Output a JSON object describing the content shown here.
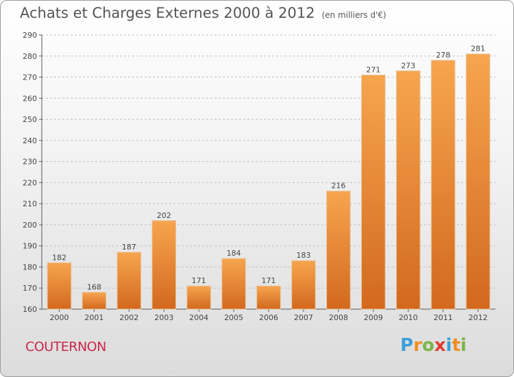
{
  "header": {
    "title": "Achats et Charges Externes 2000 à 2012",
    "unit": "(en milliers d'€)"
  },
  "footer": {
    "commune": "COUTERNON",
    "logo_letters": [
      "P",
      "r",
      "o",
      "x",
      "i",
      "t",
      "i"
    ],
    "logo_colors": [
      "#3aa0d8",
      "#f28c1e",
      "#7ab648",
      "#e03c31",
      "#3aa0d8",
      "#f28c1e",
      "#7ab648"
    ]
  },
  "chart_data": {
    "type": "bar",
    "title": "Achats et Charges Externes 2000 à 2012",
    "subtitle": "(en milliers d'€)",
    "categories": [
      "2000",
      "2001",
      "2002",
      "2003",
      "2004",
      "2005",
      "2006",
      "2007",
      "2008",
      "2009",
      "2010",
      "2011",
      "2012"
    ],
    "values": [
      182,
      168,
      187,
      202,
      171,
      184,
      171,
      183,
      216,
      271,
      273,
      278,
      281
    ],
    "ylim": [
      160,
      290
    ],
    "yticks": [
      160,
      170,
      180,
      190,
      200,
      210,
      220,
      230,
      240,
      250,
      260,
      270,
      280,
      290
    ],
    "grid": true,
    "bar_color_top": "#f7a54f",
    "bar_color_bottom": "#d2691e"
  }
}
